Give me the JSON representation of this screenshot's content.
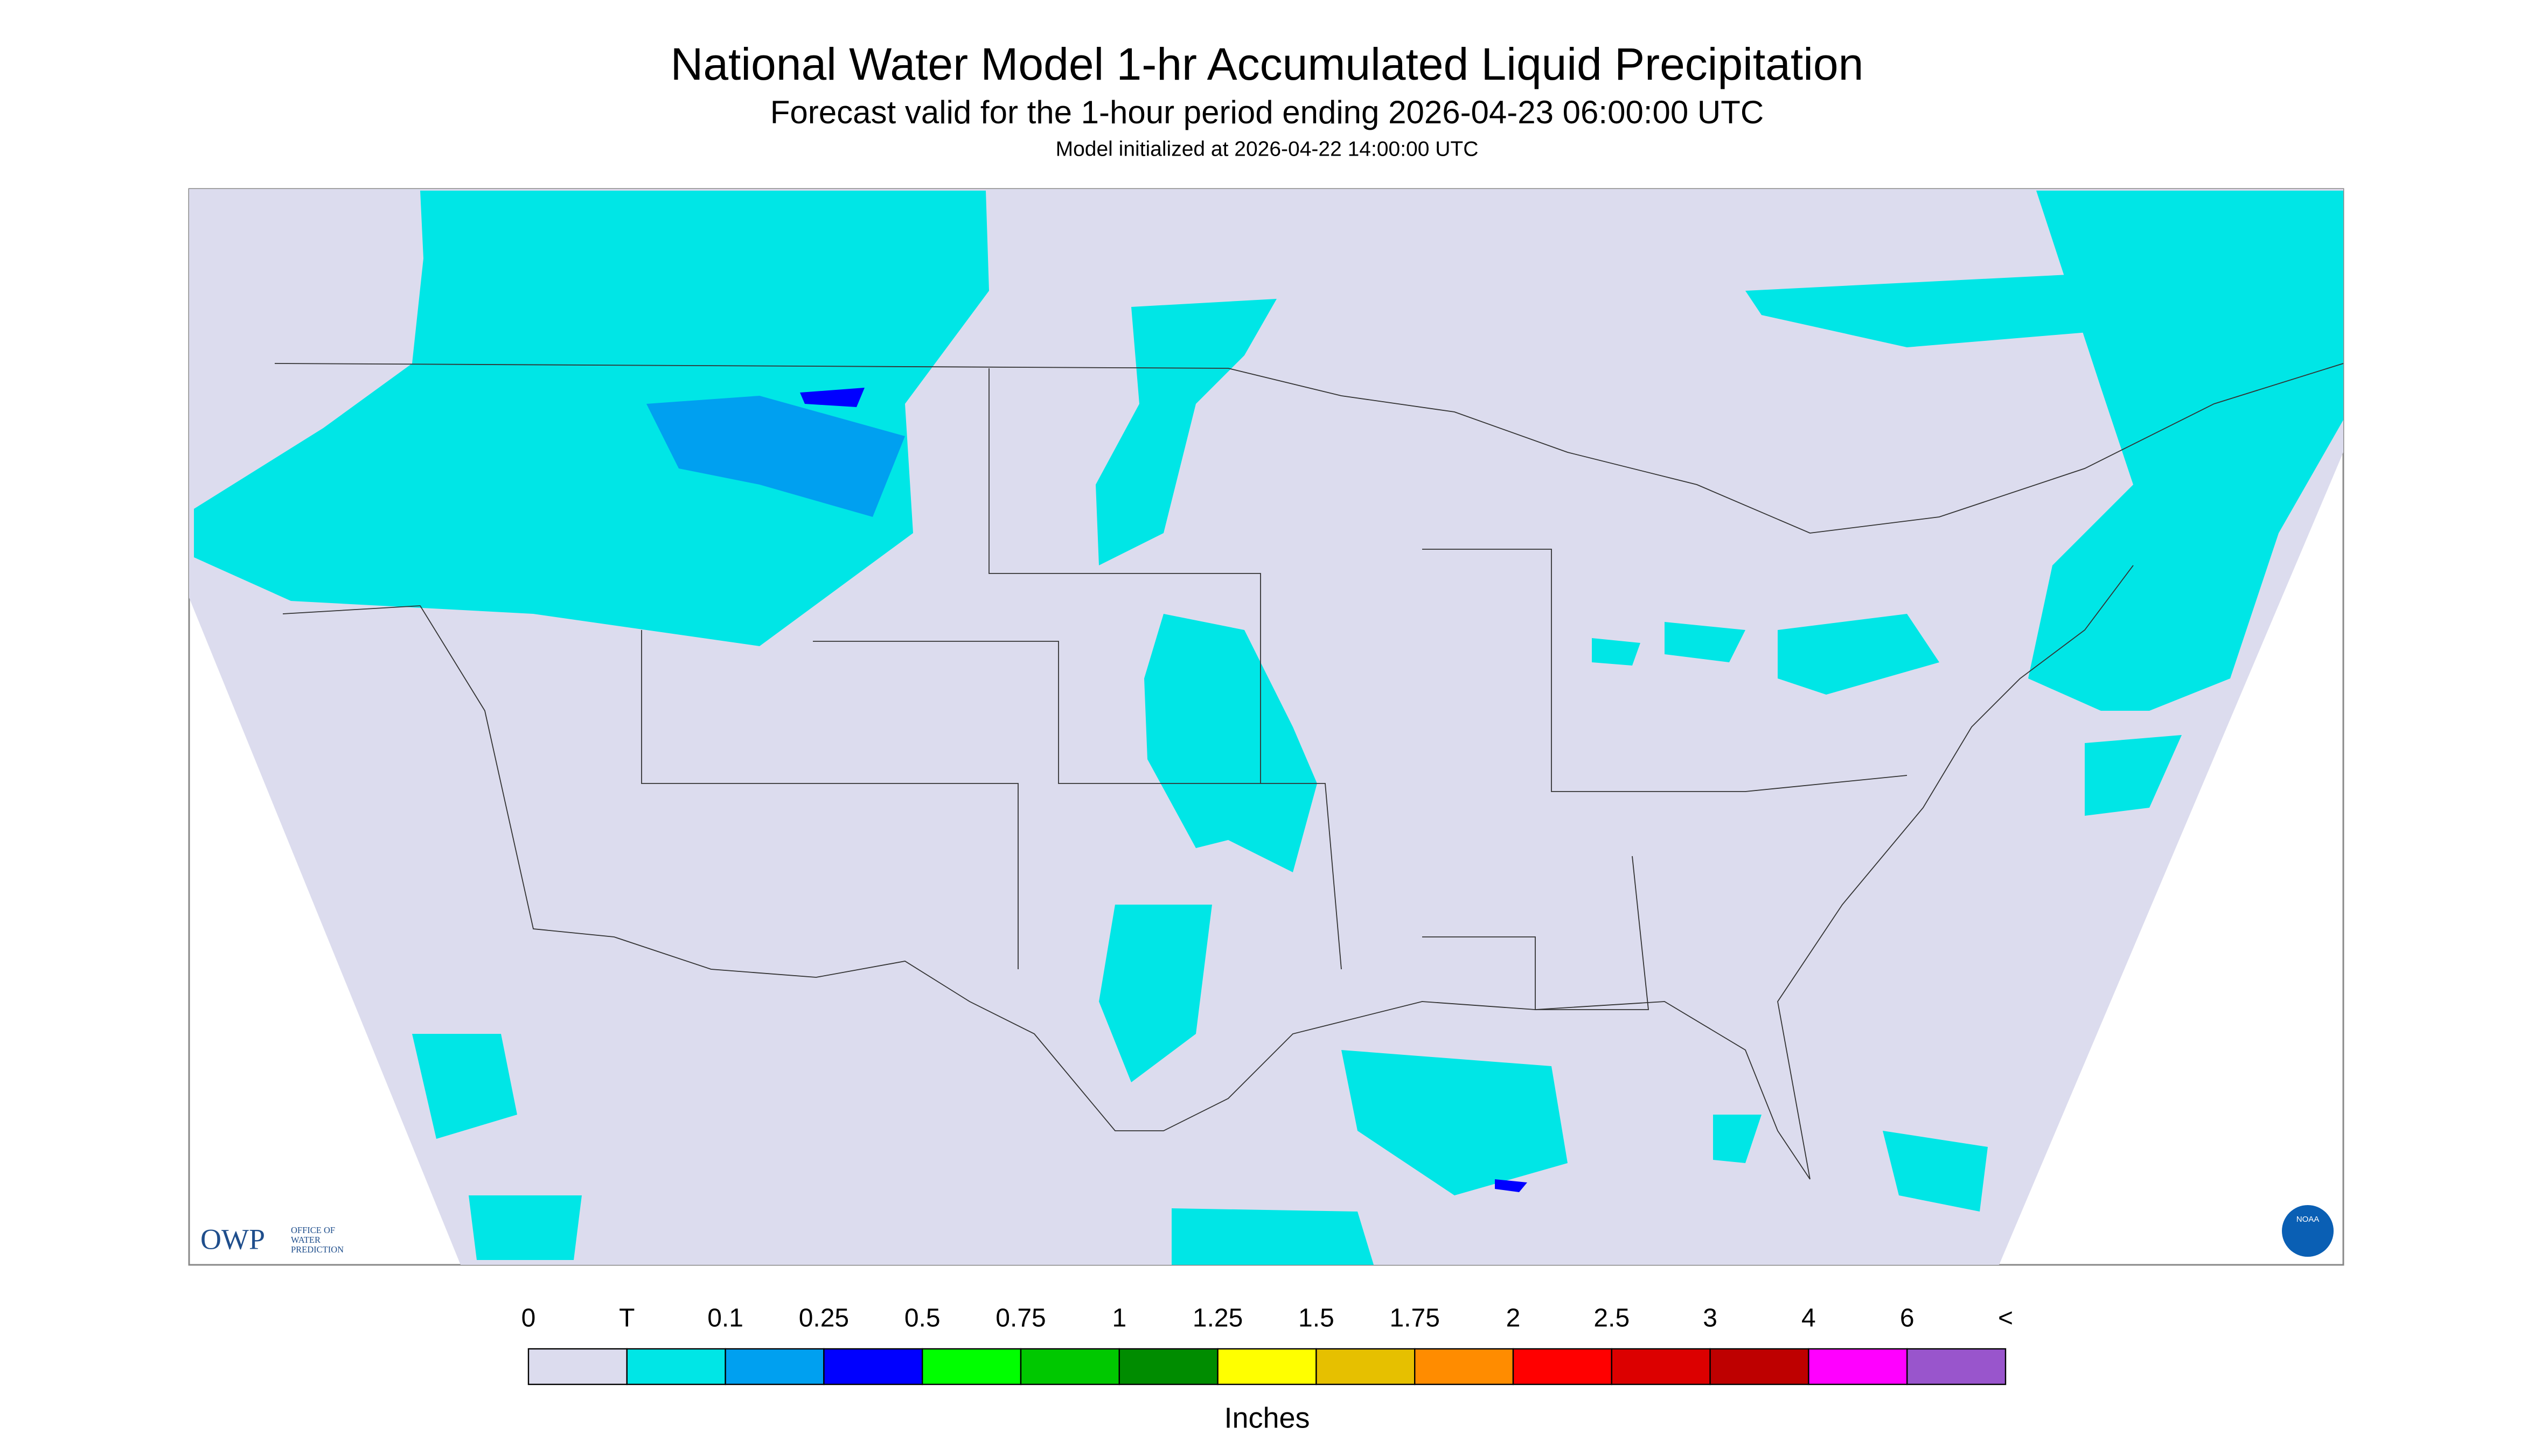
{
  "header": {
    "title": "National Water Model 1-hr Accumulated Liquid Precipitation",
    "subtitle": "Forecast valid for the 1-hour period ending 2026-04-23 06:00:00 UTC",
    "init": "Model initialized at 2026-04-22 14:00:00 UTC"
  },
  "logo": {
    "owp": "OWP",
    "owp_lines": [
      "OFFICE OF",
      "WATER",
      "PREDICTION"
    ],
    "noaa": "NOAA"
  },
  "legend": {
    "labels": [
      "0",
      "T",
      "0.1",
      "0.25",
      "0.5",
      "0.75",
      "1",
      "1.25",
      "1.5",
      "1.75",
      "2",
      "2.5",
      "3",
      "4",
      "6",
      "<"
    ],
    "colors": [
      "#dcdcee",
      "#00e6e6",
      "#00a0f0",
      "#0000ff",
      "#00ff00",
      "#00c800",
      "#008c00",
      "#ffff00",
      "#e6c000",
      "#ff8c00",
      "#ff0000",
      "#dc0000",
      "#be0000",
      "#ff00ff",
      "#9955cc"
    ],
    "units": "Inches"
  }
}
